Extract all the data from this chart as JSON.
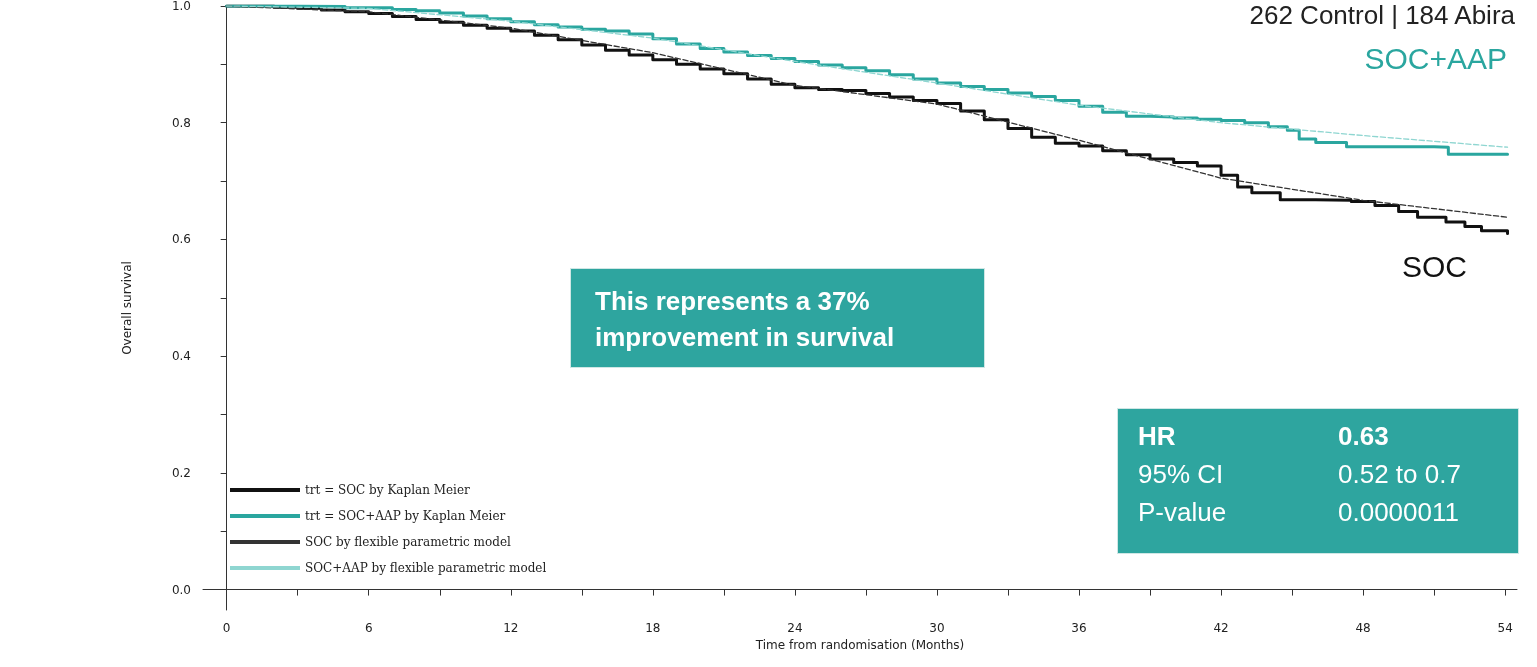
{
  "chart_data": {
    "type": "step",
    "xlabel": "Time from randomisation (Months)",
    "ylabel": "Overall survival",
    "xlim": [
      -1,
      54.5
    ],
    "ylim": [
      -0.035,
      1.0
    ],
    "xticks": [
      0,
      {
        "value": 3,
        "label": null
      },
      6,
      {
        "value": 9,
        "label": null
      },
      12,
      {
        "value": 15,
        "label": null
      },
      18,
      {
        "value": 21,
        "label": null
      },
      24,
      {
        "value": 27,
        "label": null
      },
      30,
      {
        "value": 33,
        "label": null
      },
      36,
      {
        "value": 39,
        "label": null
      },
      42,
      {
        "value": 45,
        "label": null
      },
      48,
      {
        "value": 51,
        "label": null
      },
      54
    ],
    "yticks": [
      {
        "value": 0,
        "label": "0.0"
      },
      {
        "value": 0.1,
        "label": null
      },
      {
        "value": 0.2,
        "label": "0.2"
      },
      {
        "value": 0.3,
        "label": null
      },
      {
        "value": 0.4,
        "label": "0.4"
      },
      {
        "value": 0.5,
        "label": null
      },
      {
        "value": 0.6,
        "label": "0.6"
      },
      {
        "value": 0.7,
        "label": null
      },
      {
        "value": 0.8,
        "label": "0.8"
      },
      {
        "value": 0.9,
        "label": null
      },
      {
        "value": 1.0,
        "label": "1.0"
      }
    ],
    "legend": "bottom left",
    "marker": "none",
    "series": [
      {
        "name": "trt = SOC by Kaplan Meier",
        "color": "#111111",
        "x": [
          0,
          2,
          3,
          4,
          5,
          6,
          7,
          8,
          9,
          10,
          11,
          12,
          13,
          14,
          15,
          16,
          17,
          18,
          19,
          20,
          21,
          22,
          23,
          24,
          25,
          26,
          27,
          28,
          29,
          30,
          31,
          32,
          33,
          34,
          35,
          36,
          37,
          38,
          39,
          40,
          41,
          42,
          42.7,
          43.3,
          44.5,
          46,
          47.5,
          48.5,
          49.5,
          50.3,
          51.5,
          52.3,
          53,
          54.1
        ],
        "values": [
          1.0,
          0.998,
          0.996,
          0.993,
          0.99,
          0.987,
          0.982,
          0.977,
          0.972,
          0.967,
          0.962,
          0.957,
          0.95,
          0.942,
          0.933,
          0.924,
          0.916,
          0.908,
          0.9,
          0.892,
          0.884,
          0.875,
          0.866,
          0.86,
          0.857,
          0.855,
          0.85,
          0.844,
          0.838,
          0.833,
          0.82,
          0.805,
          0.79,
          0.775,
          0.765,
          0.76,
          0.752,
          0.745,
          0.738,
          0.732,
          0.726,
          0.71,
          0.69,
          0.68,
          0.668,
          0.667,
          0.665,
          0.658,
          0.648,
          0.638,
          0.63,
          0.622,
          0.615,
          0.61
        ]
      },
      {
        "name": "trt = SOC+AAP by Kaplan Meier",
        "color": "#2aa69f",
        "x": [
          0,
          3,
          5,
          7,
          8,
          9,
          10,
          11,
          12,
          13,
          14,
          15,
          16,
          17,
          18,
          19,
          20,
          21,
          22,
          23,
          24,
          25,
          26,
          27,
          28,
          29,
          30,
          31,
          32,
          33,
          34,
          35,
          36,
          37,
          38,
          39,
          40,
          41,
          42,
          43,
          44,
          44.8,
          45.3,
          46,
          47.3,
          51,
          51.6,
          54.1
        ],
        "values": [
          1.0,
          0.999,
          0.997,
          0.994,
          0.992,
          0.988,
          0.983,
          0.978,
          0.973,
          0.968,
          0.964,
          0.96,
          0.957,
          0.952,
          0.944,
          0.935,
          0.927,
          0.921,
          0.915,
          0.91,
          0.905,
          0.899,
          0.894,
          0.889,
          0.882,
          0.875,
          0.868,
          0.862,
          0.857,
          0.851,
          0.845,
          0.838,
          0.828,
          0.818,
          0.811,
          0.81,
          0.808,
          0.806,
          0.804,
          0.8,
          0.793,
          0.787,
          0.772,
          0.766,
          0.759,
          0.758,
          0.746,
          0.746
        ]
      },
      {
        "name": "SOC by flexible parametric model",
        "type": "line",
        "line_style": "dashed",
        "color": "#333333",
        "x": [
          0,
          6,
          12,
          18,
          24,
          30,
          36,
          42,
          48,
          54.1
        ],
        "values": [
          1.0,
          0.99,
          0.962,
          0.92,
          0.864,
          0.832,
          0.77,
          0.705,
          0.667,
          0.638
        ]
      },
      {
        "name": "SOC+AAP by flexible parametric model",
        "type": "line",
        "line_style": "dashed",
        "color": "#8fd6d1",
        "x": [
          0,
          6,
          12,
          18,
          24,
          30,
          36,
          42,
          48,
          54.1
        ],
        "values": [
          1.0,
          0.996,
          0.974,
          0.945,
          0.905,
          0.868,
          0.83,
          0.8,
          0.778,
          0.758
        ]
      }
    ],
    "annotations": [
      "262 Control | 184 Abira",
      "This represents a 37%\nimprovement in survival",
      "HR",
      "0.63",
      "95% CI",
      "0.52 to 0.7",
      "P-value",
      "0.0000011",
      "SOC+AAP",
      "SOC"
    ]
  }
}
